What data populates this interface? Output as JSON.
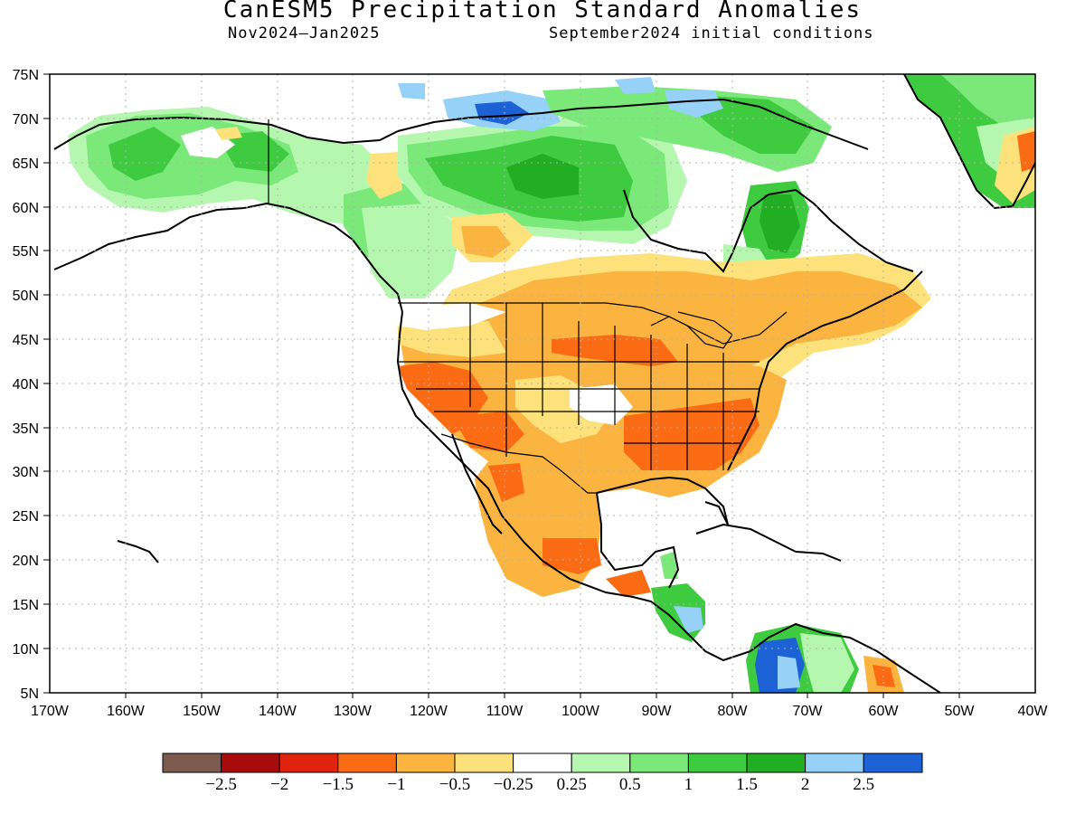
{
  "title": "CanESM5 Precipitation Standard Anomalies",
  "subtitle_left": "Nov2024—Jan2025",
  "subtitle_right": "September2024 initial conditions",
  "lat_labels": [
    "75N",
    "70N",
    "65N",
    "60N",
    "55N",
    "50N",
    "45N",
    "40N",
    "35N",
    "30N",
    "25N",
    "20N",
    "15N",
    "10N",
    "5N"
  ],
  "lon_labels": [
    "170W",
    "160W",
    "150W",
    "140W",
    "130W",
    "120W",
    "110W",
    "100W",
    "90W",
    "80W",
    "70W",
    "60W",
    "50W",
    "40W"
  ],
  "colorbar": {
    "colors": [
      "#7c5a4e",
      "#a80b0b",
      "#e0230d",
      "#fb6b13",
      "#fbb43f",
      "#fde27c",
      "#ffffff",
      "#b6f7b0",
      "#7ae97a",
      "#3fcb3f",
      "#22ae22",
      "#96d1f8",
      "#1c62d5"
    ],
    "labels": [
      "−2.5",
      "−2",
      "−1.5",
      "−1",
      "−0.5",
      "−0.25",
      "0.25",
      "0.5",
      "1",
      "1.5",
      "2",
      "2.5"
    ]
  },
  "anomaly_regions": [
    {
      "name": "alaska-wet",
      "color": "#3fcb3f"
    },
    {
      "name": "canada-arctic-wet",
      "color": "#3fcb3f"
    },
    {
      "name": "canada-arctic-dry",
      "color": "#fde27c"
    },
    {
      "name": "baffin-very-wet",
      "color": "#1c62d5"
    },
    {
      "name": "baffin-wet",
      "color": "#96d1f8"
    },
    {
      "name": "labrador-wet",
      "color": "#22ae22"
    },
    {
      "name": "greenland-wet",
      "color": "#3fcb3f"
    },
    {
      "name": "greenland-dry",
      "color": "#fb6b13"
    },
    {
      "name": "us-canada-dry",
      "color": "#fbb43f"
    },
    {
      "name": "us-mid-dry",
      "color": "#fb6b13"
    },
    {
      "name": "us-southeast-dry",
      "color": "#fb6b13"
    },
    {
      "name": "mexico-dry",
      "color": "#fbb43f"
    },
    {
      "name": "central-america-wet",
      "color": "#3fcb3f"
    },
    {
      "name": "colombia-very-wet",
      "color": "#1c62d5"
    },
    {
      "name": "venezuela-dry",
      "color": "#fb6b13"
    }
  ]
}
